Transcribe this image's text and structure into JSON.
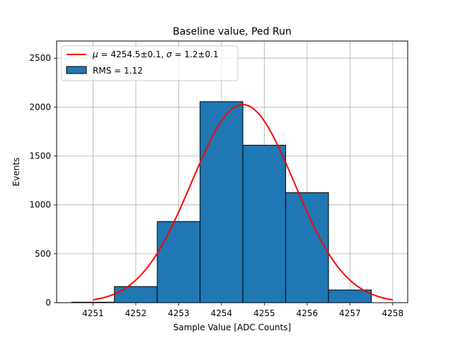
{
  "chart_data": {
    "type": "bar",
    "title": "Baseline value, Ped Run",
    "xlabel": "Sample Value [ADC Counts]",
    "ylabel": "Events",
    "xlim": [
      4250.15,
      4258.35
    ],
    "ylim": [
      0,
      2675
    ],
    "grid": true,
    "legend_position": "top-left",
    "x_ticks": [
      "4251",
      "4252",
      "4253",
      "4254",
      "4255",
      "4256",
      "4257",
      "4258"
    ],
    "y_ticks": [
      "0",
      "500",
      "1000",
      "1500",
      "2000",
      "2500"
    ],
    "series": [
      {
        "name": "RMS = 1.12",
        "kind": "histogram",
        "color": "#1f77b4",
        "edge_color": "#000000",
        "bins": [
          {
            "start": 4250.5,
            "end": 4251.5,
            "value": 5
          },
          {
            "start": 4251.5,
            "end": 4252.5,
            "value": 165
          },
          {
            "start": 4252.5,
            "end": 4253.5,
            "value": 830
          },
          {
            "start": 4253.5,
            "end": 4254.5,
            "value": 2055
          },
          {
            "start": 4254.5,
            "end": 4255.5,
            "value": 1610
          },
          {
            "start": 4255.5,
            "end": 4256.5,
            "value": 1125
          },
          {
            "start": 4256.5,
            "end": 4257.5,
            "value": 130
          }
        ]
      },
      {
        "name": "fit",
        "kind": "gaussian_fit",
        "color": "#ff0000",
        "mu": 4254.5,
        "sigma": 1.2,
        "amplitude": 2025,
        "x_range": [
          4251,
          4258
        ]
      }
    ],
    "legend": {
      "fit_label": {
        "mu_symbol": "μ",
        "mu_text": " = 4254.5±0.1, ",
        "sigma_symbol": "σ",
        "sigma_text": " = 1.2±0.1"
      },
      "hist_label": "RMS = 1.12"
    }
  }
}
